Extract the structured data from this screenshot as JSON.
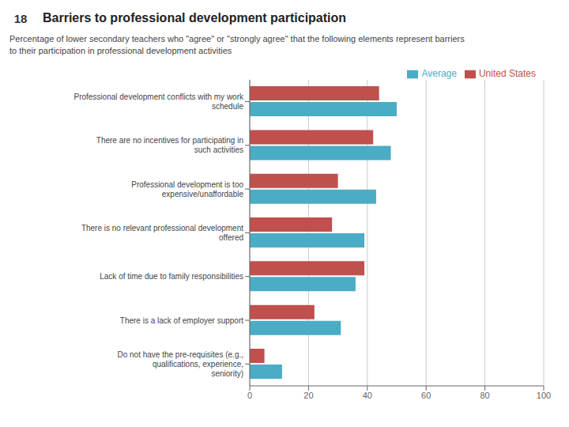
{
  "chart_data": {
    "type": "bar",
    "orientation": "horizontal",
    "title": "Barriers to professional development participation",
    "subtitle": "Percentage of lower secondary teachers who \"agree\" or \"strongly agree\" that the following elements represent barriers\nto their participation in professional development activities",
    "annotations": [
      "18"
    ],
    "categories": [
      "Professional development conflicts with my work schedule",
      "There are no incentives for participating in such activities",
      "Professional development is too expensive/unaffordable",
      "There is no relevant professional development offered",
      "Lack of time due to family responsibilities",
      "There is a lack of employer support",
      "Do not have the pre-requisites (e.g., qualifications, experience,\nseniority)"
    ],
    "series": [
      {
        "name": "United States",
        "color": "#c0504d",
        "values": [
          44,
          42,
          30,
          28,
          39,
          22,
          5
        ]
      },
      {
        "name": "Average",
        "color": "#4bacc6",
        "values": [
          50,
          48,
          43,
          39,
          36,
          31,
          11
        ]
      }
    ],
    "xlim": [
      0,
      100
    ],
    "xticks": [
      0,
      20,
      40,
      60,
      80,
      100
    ],
    "grid": true,
    "legend": "top"
  }
}
